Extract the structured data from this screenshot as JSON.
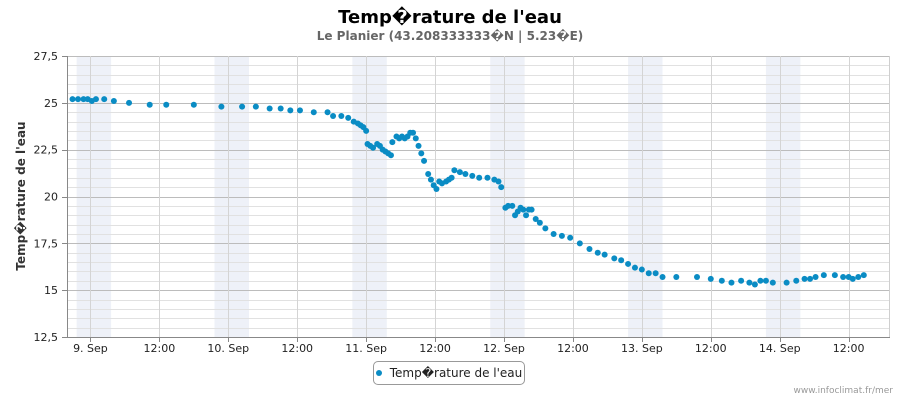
{
  "chart_data": {
    "type": "scatter",
    "title": "Temp�rature de l'eau",
    "subtitle": "Le Planier (43.208333333�N | 5.23�E)",
    "ylabel": "Temp�rature de l'eau",
    "xlabel": "",
    "ylim": [
      12.5,
      27.5
    ],
    "yticks": [
      "12,5",
      "15",
      "17,5",
      "20",
      "22,5",
      "25",
      "27,5"
    ],
    "ytick_values": [
      12.5,
      15,
      17.5,
      20,
      22.5,
      25,
      27.5
    ],
    "xlim": [
      -0.17,
      5.8
    ],
    "xticks": [
      "9. Sep",
      "12:00",
      "10. Sep",
      "12:00",
      "11. Sep",
      "12:00",
      "12. Sep",
      "12:00",
      "13. Sep",
      "12:00",
      "14. Sep",
      "12:00"
    ],
    "xtick_values": [
      0,
      0.5,
      1,
      1.5,
      2,
      2.5,
      3,
      3.5,
      4,
      4.5,
      5,
      5.5
    ],
    "x_unit": "days from 9 Sep 00:00",
    "shaded_bands": [
      [
        -0.1,
        0.15
      ],
      [
        0.9,
        1.15
      ],
      [
        1.9,
        2.15
      ],
      [
        2.9,
        3.15
      ],
      [
        3.9,
        4.15
      ],
      [
        4.9,
        5.15
      ]
    ],
    "grid": true,
    "legend_position": "bottom-center",
    "series": [
      {
        "name": "Temp�rature de l'eau",
        "color": "#0a8cc4",
        "points": [
          [
            -0.13,
            25.2
          ],
          [
            -0.09,
            25.2
          ],
          [
            -0.05,
            25.2
          ],
          [
            -0.02,
            25.2
          ],
          [
            0.01,
            25.1
          ],
          [
            0.04,
            25.2
          ],
          [
            0.1,
            25.2
          ],
          [
            0.17,
            25.1
          ],
          [
            0.28,
            25.0
          ],
          [
            0.43,
            24.9
          ],
          [
            0.55,
            24.9
          ],
          [
            0.75,
            24.9
          ],
          [
            0.95,
            24.8
          ],
          [
            1.1,
            24.8
          ],
          [
            1.2,
            24.8
          ],
          [
            1.3,
            24.7
          ],
          [
            1.38,
            24.7
          ],
          [
            1.45,
            24.6
          ],
          [
            1.52,
            24.6
          ],
          [
            1.62,
            24.5
          ],
          [
            1.72,
            24.5
          ],
          [
            1.76,
            24.3
          ],
          [
            1.82,
            24.3
          ],
          [
            1.87,
            24.2
          ],
          [
            1.91,
            24.0
          ],
          [
            1.94,
            23.9
          ],
          [
            1.96,
            23.8
          ],
          [
            1.98,
            23.7
          ],
          [
            2.0,
            23.5
          ],
          [
            2.01,
            22.8
          ],
          [
            2.03,
            22.7
          ],
          [
            2.05,
            22.6
          ],
          [
            2.08,
            22.8
          ],
          [
            2.1,
            22.7
          ],
          [
            2.12,
            22.5
          ],
          [
            2.14,
            22.4
          ],
          [
            2.16,
            22.3
          ],
          [
            2.18,
            22.2
          ],
          [
            2.19,
            22.9
          ],
          [
            2.22,
            23.2
          ],
          [
            2.24,
            23.1
          ],
          [
            2.26,
            23.2
          ],
          [
            2.28,
            23.1
          ],
          [
            2.3,
            23.2
          ],
          [
            2.32,
            23.4
          ],
          [
            2.34,
            23.4
          ],
          [
            2.36,
            23.1
          ],
          [
            2.38,
            22.7
          ],
          [
            2.4,
            22.3
          ],
          [
            2.42,
            21.9
          ],
          [
            2.45,
            21.2
          ],
          [
            2.47,
            20.9
          ],
          [
            2.49,
            20.6
          ],
          [
            2.51,
            20.4
          ],
          [
            2.53,
            20.8
          ],
          [
            2.55,
            20.7
          ],
          [
            2.58,
            20.8
          ],
          [
            2.6,
            20.9
          ],
          [
            2.62,
            21.0
          ],
          [
            2.64,
            21.4
          ],
          [
            2.68,
            21.3
          ],
          [
            2.72,
            21.2
          ],
          [
            2.77,
            21.1
          ],
          [
            2.82,
            21.0
          ],
          [
            2.88,
            21.0
          ],
          [
            2.93,
            20.9
          ],
          [
            2.96,
            20.8
          ],
          [
            2.98,
            20.5
          ],
          [
            3.01,
            19.4
          ],
          [
            3.03,
            19.5
          ],
          [
            3.06,
            19.5
          ],
          [
            3.08,
            19.0
          ],
          [
            3.1,
            19.2
          ],
          [
            3.12,
            19.4
          ],
          [
            3.14,
            19.3
          ],
          [
            3.16,
            19.0
          ],
          [
            3.18,
            19.3
          ],
          [
            3.2,
            19.3
          ],
          [
            3.23,
            18.8
          ],
          [
            3.26,
            18.6
          ],
          [
            3.3,
            18.3
          ],
          [
            3.36,
            18.0
          ],
          [
            3.42,
            17.9
          ],
          [
            3.48,
            17.8
          ],
          [
            3.55,
            17.5
          ],
          [
            3.62,
            17.2
          ],
          [
            3.68,
            17.0
          ],
          [
            3.73,
            16.9
          ],
          [
            3.8,
            16.7
          ],
          [
            3.85,
            16.6
          ],
          [
            3.9,
            16.4
          ],
          [
            3.95,
            16.2
          ],
          [
            4.0,
            16.1
          ],
          [
            4.05,
            15.9
          ],
          [
            4.1,
            15.9
          ],
          [
            4.15,
            15.7
          ],
          [
            4.25,
            15.7
          ],
          [
            4.4,
            15.7
          ],
          [
            4.5,
            15.6
          ],
          [
            4.58,
            15.5
          ],
          [
            4.65,
            15.4
          ],
          [
            4.72,
            15.5
          ],
          [
            4.78,
            15.4
          ],
          [
            4.82,
            15.3
          ],
          [
            4.86,
            15.5
          ],
          [
            4.9,
            15.5
          ],
          [
            4.95,
            15.4
          ],
          [
            5.05,
            15.4
          ],
          [
            5.12,
            15.5
          ],
          [
            5.18,
            15.6
          ],
          [
            5.22,
            15.6
          ],
          [
            5.26,
            15.7
          ],
          [
            5.32,
            15.8
          ],
          [
            5.4,
            15.8
          ],
          [
            5.46,
            15.7
          ],
          [
            5.5,
            15.7
          ],
          [
            5.53,
            15.6
          ],
          [
            5.57,
            15.7
          ],
          [
            5.61,
            15.8
          ]
        ]
      }
    ]
  },
  "legend": {
    "label": "Temp�rature de l'eau"
  },
  "credit": "www.infoclimat.fr/mer"
}
